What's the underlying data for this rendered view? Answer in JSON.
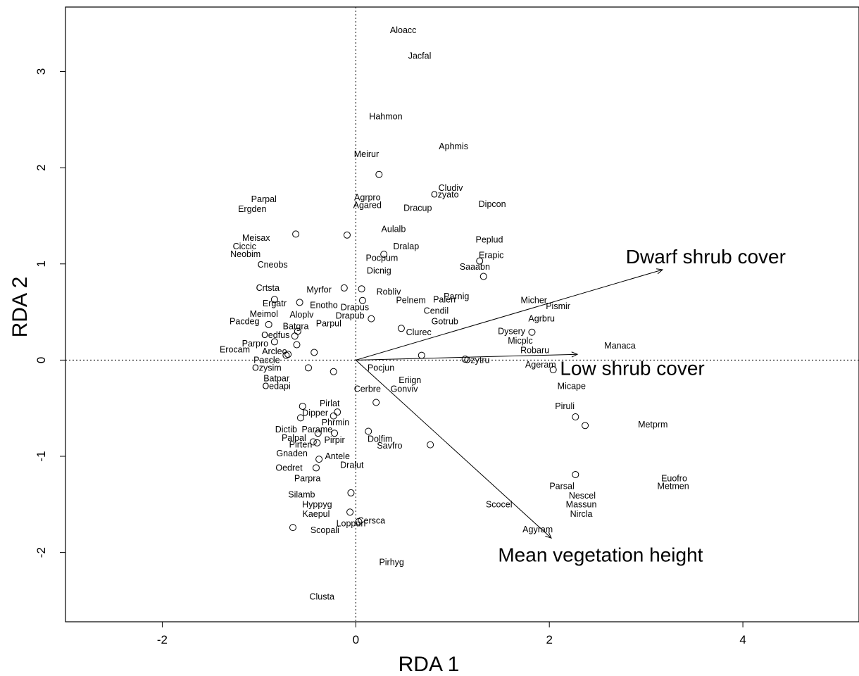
{
  "chart_data": {
    "type": "scatter",
    "title": "",
    "xlabel": "RDA 1",
    "ylabel": "RDA 2",
    "xlim": [
      -3.0,
      5.2
    ],
    "ylim": [
      -2.72,
      3.67
    ],
    "xticks": [
      -2,
      0,
      2,
      4
    ],
    "yticks": [
      -2,
      -1,
      0,
      1,
      2,
      3
    ],
    "grid": false,
    "reference_lines": {
      "x": 0,
      "y": 0,
      "style": "dotted"
    },
    "species": [
      {
        "label": "Aloacc",
        "x": 0.49,
        "y": 3.43
      },
      {
        "label": "Jacfal",
        "x": 0.66,
        "y": 3.16
      },
      {
        "label": "Hahmon",
        "x": 0.31,
        "y": 2.53
      },
      {
        "label": "Aphmis",
        "x": 1.01,
        "y": 2.22
      },
      {
        "label": "Meirur",
        "x": 0.11,
        "y": 2.14
      },
      {
        "label": "Parpal",
        "x": -0.95,
        "y": 1.67
      },
      {
        "label": "Ergden",
        "x": -1.07,
        "y": 1.57
      },
      {
        "label": "Cludiv",
        "x": 0.98,
        "y": 1.79
      },
      {
        "label": "Ozyato",
        "x": 0.92,
        "y": 1.72
      },
      {
        "label": "Agrpro",
        "x": 0.12,
        "y": 1.69
      },
      {
        "label": "Agared",
        "x": 0.12,
        "y": 1.61
      },
      {
        "label": "Dipcon",
        "x": 1.41,
        "y": 1.62
      },
      {
        "label": "Dracup",
        "x": 0.64,
        "y": 1.58
      },
      {
        "label": "Aulalb",
        "x": 0.39,
        "y": 1.36
      },
      {
        "label": "Meisax",
        "x": -1.03,
        "y": 1.27
      },
      {
        "label": "Ciccic",
        "x": -1.15,
        "y": 1.18
      },
      {
        "label": "Neobim",
        "x": -1.14,
        "y": 1.1
      },
      {
        "label": "Peplud",
        "x": 1.38,
        "y": 1.25
      },
      {
        "label": "Dralap",
        "x": 0.52,
        "y": 1.18
      },
      {
        "label": "Erapic",
        "x": 1.4,
        "y": 1.09
      },
      {
        "label": "Pocpum",
        "x": 0.27,
        "y": 1.06
      },
      {
        "label": "Saaabn",
        "x": 1.23,
        "y": 0.97
      },
      {
        "label": "Cneobs",
        "x": -0.86,
        "y": 0.99
      },
      {
        "label": "Dicnig",
        "x": 0.24,
        "y": 0.93
      },
      {
        "label": "Crtsta",
        "x": -0.91,
        "y": 0.75
      },
      {
        "label": "Myrfor",
        "x": -0.38,
        "y": 0.73
      },
      {
        "label": "Robliv",
        "x": 0.34,
        "y": 0.71
      },
      {
        "label": "Parnig",
        "x": 1.04,
        "y": 0.66
      },
      {
        "label": "Palerr",
        "x": 0.92,
        "y": 0.63
      },
      {
        "label": "Pelnem",
        "x": 0.57,
        "y": 0.62
      },
      {
        "label": "Micher",
        "x": 1.84,
        "y": 0.62
      },
      {
        "label": "Pismir",
        "x": 2.09,
        "y": 0.56
      },
      {
        "label": "Ergatr",
        "x": -0.84,
        "y": 0.59
      },
      {
        "label": "Enotho",
        "x": -0.33,
        "y": 0.57
      },
      {
        "label": "Drapus",
        "x": -0.01,
        "y": 0.55
      },
      {
        "label": "Cendil",
        "x": 0.83,
        "y": 0.51
      },
      {
        "label": "Meimol",
        "x": -0.95,
        "y": 0.48
      },
      {
        "label": "Aloplv",
        "x": -0.56,
        "y": 0.47
      },
      {
        "label": "Drapub",
        "x": -0.06,
        "y": 0.46
      },
      {
        "label": "Agrbru",
        "x": 1.92,
        "y": 0.43
      },
      {
        "label": "Gotrub",
        "x": 0.92,
        "y": 0.4
      },
      {
        "label": "Pacdeg",
        "x": -1.15,
        "y": 0.4
      },
      {
        "label": "Parpul",
        "x": -0.28,
        "y": 0.38
      },
      {
        "label": "Batgra",
        "x": -0.62,
        "y": 0.35
      },
      {
        "label": "Dysery",
        "x": 1.61,
        "y": 0.3
      },
      {
        "label": "Clurec",
        "x": 0.65,
        "y": 0.29
      },
      {
        "label": "Oedfus",
        "x": -0.83,
        "y": 0.26
      },
      {
        "label": "Micplc",
        "x": 1.7,
        "y": 0.2
      },
      {
        "label": "Manaca",
        "x": 2.73,
        "y": 0.15
      },
      {
        "label": "Parpro",
        "x": -1.04,
        "y": 0.17
      },
      {
        "label": "Erocam",
        "x": -1.25,
        "y": 0.11
      },
      {
        "label": "Arcleo",
        "x": -0.84,
        "y": 0.09
      },
      {
        "label": "Robaru",
        "x": 1.85,
        "y": 0.1
      },
      {
        "label": "Paccle",
        "x": -0.92,
        "y": 0.0
      },
      {
        "label": "Ozytru",
        "x": 1.25,
        "y": 0.0
      },
      {
        "label": "Ageram",
        "x": 1.91,
        "y": -0.05
      },
      {
        "label": "Ozysim",
        "x": -0.92,
        "y": -0.08
      },
      {
        "label": "Pocjun",
        "x": 0.26,
        "y": -0.08
      },
      {
        "label": "Batpar",
        "x": -0.82,
        "y": -0.19
      },
      {
        "label": "Eriign",
        "x": 0.56,
        "y": -0.21
      },
      {
        "label": "Oedapi",
        "x": -0.82,
        "y": -0.27
      },
      {
        "label": "Micape",
        "x": 2.23,
        "y": -0.27
      },
      {
        "label": "Cerbre",
        "x": 0.12,
        "y": -0.3
      },
      {
        "label": "Gonviv",
        "x": 0.5,
        "y": -0.3
      },
      {
        "label": "Pirlat",
        "x": -0.27,
        "y": -0.45
      },
      {
        "label": "Piruli",
        "x": 2.16,
        "y": -0.48
      },
      {
        "label": "Dipper",
        "x": -0.42,
        "y": -0.55
      },
      {
        "label": "Phrmin",
        "x": -0.21,
        "y": -0.65
      },
      {
        "label": "Metprm",
        "x": 3.07,
        "y": -0.67
      },
      {
        "label": "Dictib",
        "x": -0.72,
        "y": -0.72
      },
      {
        "label": "Parame",
        "x": -0.4,
        "y": -0.72
      },
      {
        "label": "Dolfim",
        "x": 0.25,
        "y": -0.82
      },
      {
        "label": "Palpal",
        "x": -0.64,
        "y": -0.81
      },
      {
        "label": "Pirpir",
        "x": -0.22,
        "y": -0.83
      },
      {
        "label": "Pirten",
        "x": -0.57,
        "y": -0.88
      },
      {
        "label": "Savfro",
        "x": 0.35,
        "y": -0.89
      },
      {
        "label": "Gnaden",
        "x": -0.66,
        "y": -0.97
      },
      {
        "label": "Antele",
        "x": -0.19,
        "y": -1.0
      },
      {
        "label": "Dralut",
        "x": -0.04,
        "y": -1.09
      },
      {
        "label": "Oedret",
        "x": -0.69,
        "y": -1.12
      },
      {
        "label": "Parpra",
        "x": -0.5,
        "y": -1.23
      },
      {
        "label": "Euofro",
        "x": 3.29,
        "y": -1.23
      },
      {
        "label": "Metmen",
        "x": 3.28,
        "y": -1.31
      },
      {
        "label": "Parsal",
        "x": 2.13,
        "y": -1.31
      },
      {
        "label": "Silamb",
        "x": -0.56,
        "y": -1.4
      },
      {
        "label": "Nescel",
        "x": 2.34,
        "y": -1.41
      },
      {
        "label": "Hyppyg",
        "x": -0.4,
        "y": -1.5
      },
      {
        "label": "Scocel",
        "x": 1.48,
        "y": -1.5
      },
      {
        "label": "Massun",
        "x": 2.33,
        "y": -1.5
      },
      {
        "label": "Kaepul",
        "x": -0.41,
        "y": -1.6
      },
      {
        "label": "Nircla",
        "x": 2.33,
        "y": -1.6
      },
      {
        "label": "Cersca",
        "x": 0.16,
        "y": -1.67
      },
      {
        "label": "Loppun",
        "x": -0.05,
        "y": -1.7
      },
      {
        "label": "Scopali",
        "x": -0.32,
        "y": -1.77
      },
      {
        "label": "Agyram",
        "x": 1.88,
        "y": -1.76
      },
      {
        "label": "Pirhyg",
        "x": 0.37,
        "y": -2.1
      },
      {
        "label": "Clusta",
        "x": -0.35,
        "y": -2.46
      }
    ],
    "sites": [
      {
        "x": 0.24,
        "y": 1.93
      },
      {
        "x": -0.62,
        "y": 1.31
      },
      {
        "x": -0.09,
        "y": 1.3
      },
      {
        "x": 0.29,
        "y": 1.1
      },
      {
        "x": 1.28,
        "y": 1.03
      },
      {
        "x": 1.32,
        "y": 0.87
      },
      {
        "x": -0.12,
        "y": 0.75
      },
      {
        "x": 0.06,
        "y": 0.74
      },
      {
        "x": -0.84,
        "y": 0.63
      },
      {
        "x": -0.58,
        "y": 0.6
      },
      {
        "x": 0.07,
        "y": 0.62
      },
      {
        "x": 0.16,
        "y": 0.43
      },
      {
        "x": -0.9,
        "y": 0.37
      },
      {
        "x": -0.6,
        "y": 0.3
      },
      {
        "x": 0.47,
        "y": 0.33
      },
      {
        "x": 1.82,
        "y": 0.29
      },
      {
        "x": -0.63,
        "y": 0.25
      },
      {
        "x": -0.84,
        "y": 0.19
      },
      {
        "x": -0.61,
        "y": 0.16
      },
      {
        "x": -0.43,
        "y": 0.08
      },
      {
        "x": -0.7,
        "y": 0.06
      },
      {
        "x": -0.72,
        "y": 0.05
      },
      {
        "x": 0.68,
        "y": 0.05
      },
      {
        "x": 1.13,
        "y": 0.01
      },
      {
        "x": 2.04,
        "y": -0.1
      },
      {
        "x": -0.49,
        "y": -0.08
      },
      {
        "x": -0.23,
        "y": -0.12
      },
      {
        "x": 0.21,
        "y": -0.44
      },
      {
        "x": -0.55,
        "y": -0.48
      },
      {
        "x": -0.19,
        "y": -0.54
      },
      {
        "x": -0.23,
        "y": -0.58
      },
      {
        "x": -0.57,
        "y": -0.6
      },
      {
        "x": 2.27,
        "y": -0.59
      },
      {
        "x": 2.37,
        "y": -0.68
      },
      {
        "x": 0.13,
        "y": -0.74
      },
      {
        "x": -0.39,
        "y": -0.76
      },
      {
        "x": -0.22,
        "y": -0.76
      },
      {
        "x": -0.44,
        "y": -0.85
      },
      {
        "x": -0.4,
        "y": -0.86
      },
      {
        "x": 0.77,
        "y": -0.88
      },
      {
        "x": -0.38,
        "y": -1.03
      },
      {
        "x": -0.41,
        "y": -1.12
      },
      {
        "x": 2.27,
        "y": -1.19
      },
      {
        "x": -0.05,
        "y": -1.38
      },
      {
        "x": -0.06,
        "y": -1.58
      },
      {
        "x": 0.03,
        "y": -1.68
      },
      {
        "x": -0.65,
        "y": -1.74
      }
    ],
    "vectors": [
      {
        "label": "Dwarf shrub cover",
        "x": 3.17,
        "y": 0.94,
        "label_x": 2.79,
        "label_y": 1.08
      },
      {
        "label": "Low shrub cover",
        "x": 2.29,
        "y": 0.06,
        "label_x": 2.11,
        "label_y": -0.08
      },
      {
        "label": "Mean vegetation height",
        "x": 2.02,
        "y": -1.85,
        "label_x": 1.47,
        "label_y": -2.02
      }
    ]
  }
}
